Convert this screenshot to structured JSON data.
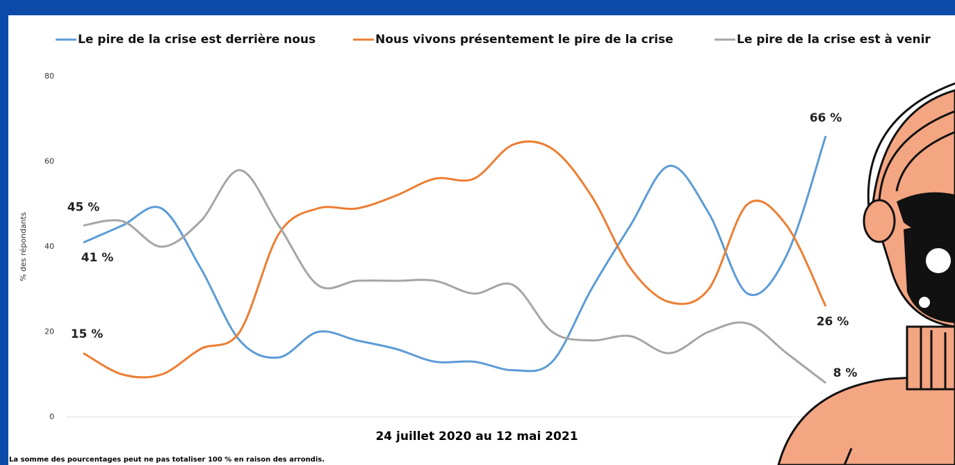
{
  "chart_data": {
    "type": "line",
    "legend_position": "top",
    "x_label": "24 juillet 2020 au 12 mai 2021",
    "y_label": "% des répondants",
    "note": "La somme des pourcentages peut ne pas totaliser 100 % en raison des arrondis.",
    "categories": [
      null,
      null,
      null,
      null,
      null,
      null,
      null,
      null,
      null,
      null,
      null,
      null,
      null,
      null,
      null,
      null,
      null,
      null,
      null,
      null
    ],
    "ylim": [
      0,
      80
    ],
    "yticks": [
      0,
      20,
      40,
      60,
      80
    ],
    "grid": false,
    "series": [
      {
        "name": "Le pire de la crise est derrière nous",
        "color": "#5b9bd5",
        "values": [
          41,
          45,
          49,
          35,
          18,
          14,
          20,
          18,
          16,
          13,
          13,
          11,
          13,
          30,
          45,
          59,
          48,
          29,
          38,
          66
        ],
        "value_labels": [
          "41 %",
          null,
          null,
          null,
          null,
          null,
          null,
          null,
          null,
          null,
          null,
          null,
          null,
          null,
          null,
          null,
          null,
          null,
          null,
          "66 %"
        ]
      },
      {
        "name": "Nous vivons présentement le pire de la crise",
        "color": "#ed7d31",
        "values": [
          15,
          10,
          10,
          16,
          20,
          43,
          49,
          49,
          52,
          56,
          56,
          64,
          63,
          52,
          35,
          27,
          30,
          50,
          45,
          26
        ],
        "value_labels": [
          "15 %",
          null,
          null,
          null,
          null,
          null,
          null,
          null,
          null,
          null,
          null,
          null,
          null,
          null,
          null,
          null,
          null,
          null,
          null,
          "26 %"
        ]
      },
      {
        "name": "Le pire de la crise est à venir",
        "color": "#a5a5a5",
        "values": [
          45,
          46,
          40,
          46,
          58,
          45,
          31,
          32,
          32,
          32,
          29,
          31,
          20,
          18,
          19,
          15,
          20,
          22,
          15,
          8
        ],
        "value_labels": [
          "45 %",
          null,
          null,
          null,
          null,
          null,
          null,
          null,
          null,
          null,
          null,
          null,
          null,
          null,
          null,
          null,
          null,
          null,
          null,
          "8 %"
        ]
      }
    ]
  }
}
